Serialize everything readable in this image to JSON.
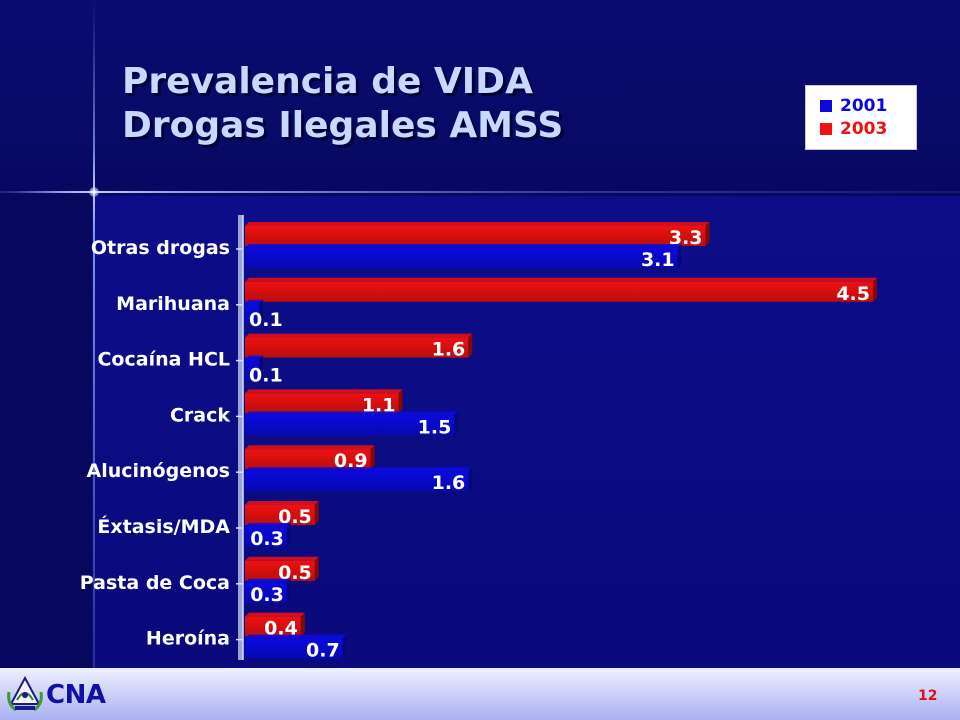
{
  "slide": {
    "title_line1": "Prevalencia de VIDA",
    "title_line2": "Drogas Ilegales AMSS",
    "logo_text": "CNA",
    "page_number": "12"
  },
  "colors": {
    "series_2001": "#0a0ae0",
    "series_2003": "#ee1111",
    "label_text": "#ffffff",
    "title_text": "#c9d8ff"
  },
  "chart_data": {
    "type": "bar",
    "orientation": "horizontal",
    "categories": [
      "Otras drogas",
      "Marihuana",
      "Cocaína HCL",
      "Crack",
      "Alucinógenos",
      "Éxtasis/MDA",
      "Pasta de Coca",
      "Heroína"
    ],
    "series": [
      {
        "name": "2001",
        "values": [
          3.1,
          0.1,
          0.1,
          1.5,
          1.6,
          0.3,
          0.3,
          0.7
        ]
      },
      {
        "name": "2003",
        "values": [
          3.3,
          4.5,
          1.6,
          1.1,
          0.9,
          0.5,
          0.5,
          0.4
        ]
      }
    ],
    "xlim": [
      0,
      4.5
    ],
    "grid": false,
    "legend_position": "top-right",
    "data_labels": true
  }
}
